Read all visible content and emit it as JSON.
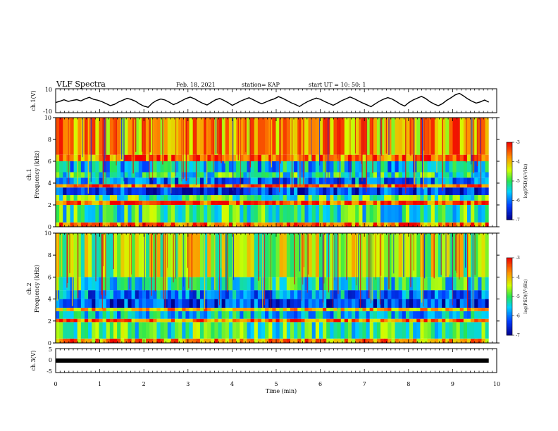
{
  "header": {
    "title": "VLF Spectra",
    "date": "Feb. 18, 2021",
    "station": "station= KAP",
    "start": "start UT = 10: 50: 1"
  },
  "chart_data": [
    {
      "type": "line",
      "ylabel": "ch.1(V)",
      "ylim": [
        -10,
        10
      ],
      "yticks": [
        "10",
        "-10"
      ],
      "x_range_min": [
        0,
        9.82
      ],
      "values": [
        -1.5,
        -0.5,
        0.8,
        -0.6,
        0.3,
        0.9,
        -0.2,
        1.5,
        2.8,
        1.2,
        0.4,
        -0.8,
        -2.4,
        -4.1,
        -3.0,
        -1.0,
        0.5,
        2.0,
        1.0,
        -0.5,
        -2.8,
        -4.5,
        -5.5,
        -2.0,
        0.2,
        1.4,
        0.6,
        -1.2,
        -3.3,
        -1.8,
        0.0,
        1.8,
        3.0,
        1.6,
        -0.4,
        -2.2,
        -3.6,
        -1.4,
        0.7,
        1.9,
        0.3,
        -1.6,
        -3.9,
        -2.1,
        -0.3,
        1.2,
        2.5,
        0.8,
        -1.0,
        -2.6,
        -1.1,
        0.4,
        1.6,
        3.4,
        2.0,
        0.1,
        -1.7,
        -3.2,
        -4.8,
        -2.5,
        -0.6,
        0.9,
        2.2,
        1.1,
        -0.7,
        -2.3,
        -3.8,
        -2.0,
        0.0,
        1.5,
        3.1,
        1.7,
        -0.2,
        -1.9,
        -3.4,
        -5.0,
        -2.6,
        -0.4,
        1.3,
        2.6,
        1.4,
        -0.6,
        -2.9,
        -4.4,
        -1.5,
        0.6,
        2.1,
        3.6,
        1.8,
        -0.8,
        -2.7,
        -4.2,
        -2.4,
        0.3,
        2.4,
        4.8,
        6.2,
        4.0,
        1.5,
        -0.5,
        -2.0,
        -1.0,
        0.6,
        -1.2
      ]
    },
    {
      "type": "heatmap",
      "ylabel": "ch.1\nFrequency (kHz)",
      "ylim": [
        0,
        10
      ],
      "yticks": [
        "0",
        "2",
        "4",
        "6",
        "8",
        "10"
      ],
      "x_range_min": [
        0,
        9.82
      ],
      "colorbar": {
        "label": "log(PSD)(V²/Hz)",
        "range": [
          -7,
          -3
        ],
        "ticks": [
          "-3",
          "-4",
          "-5",
          "-6",
          "-7"
        ]
      },
      "bands_khz": [
        {
          "from": 0,
          "to": 0.4,
          "level": -3.6
        },
        {
          "from": 0.4,
          "to": 2.0,
          "level": -5.2
        },
        {
          "from": 2.0,
          "to": 2.4,
          "level": -3.4
        },
        {
          "from": 2.4,
          "to": 2.9,
          "level": -5.0
        },
        {
          "from": 2.9,
          "to": 3.6,
          "level": -6.4
        },
        {
          "from": 3.6,
          "to": 3.9,
          "level": -3.5
        },
        {
          "from": 3.9,
          "to": 4.5,
          "level": -6.0
        },
        {
          "from": 4.5,
          "to": 5.0,
          "level": -5.2
        },
        {
          "from": 5.0,
          "to": 6.0,
          "level": -5.6
        },
        {
          "from": 6.0,
          "to": 6.6,
          "level": -3.6
        },
        {
          "from": 6.6,
          "to": 10,
          "level": -3.9
        }
      ]
    },
    {
      "type": "heatmap",
      "ylabel": "ch.2\nFrequency (kHz)",
      "ylim": [
        0,
        10
      ],
      "yticks": [
        "0",
        "2",
        "4",
        "6",
        "8",
        "10"
      ],
      "x_range_min": [
        0,
        9.82
      ],
      "colorbar": {
        "label": "log(PSD)(V²/Hz)",
        "range": [
          -7,
          -3
        ],
        "ticks": [
          "-3",
          "-4",
          "-5",
          "-6",
          "-7"
        ]
      },
      "bands_khz": [
        {
          "from": 0,
          "to": 0.4,
          "level": -3.8
        },
        {
          "from": 0.4,
          "to": 1.9,
          "level": -5.1
        },
        {
          "from": 1.9,
          "to": 2.2,
          "level": -3.6
        },
        {
          "from": 2.2,
          "to": 2.9,
          "level": -5.6
        },
        {
          "from": 2.9,
          "to": 3.2,
          "level": -4.0
        },
        {
          "from": 3.2,
          "to": 4.0,
          "level": -6.4
        },
        {
          "from": 4.0,
          "to": 4.8,
          "level": -5.9
        },
        {
          "from": 4.8,
          "to": 6.0,
          "level": -5.3
        },
        {
          "from": 6.0,
          "to": 10,
          "level": -4.6
        }
      ]
    },
    {
      "type": "line",
      "ylabel": "ch.3(V)",
      "ylim": [
        -5,
        5
      ],
      "yticks": [
        "5",
        "0",
        "-5"
      ],
      "x_range_min": [
        0,
        9.82
      ],
      "constant_value": 0
    }
  ],
  "xaxis": {
    "label": "Time (min)",
    "ticks": [
      "0",
      "1",
      "2",
      "3",
      "4",
      "5",
      "6",
      "7",
      "8",
      "9",
      "10"
    ],
    "range": [
      0,
      10
    ]
  }
}
